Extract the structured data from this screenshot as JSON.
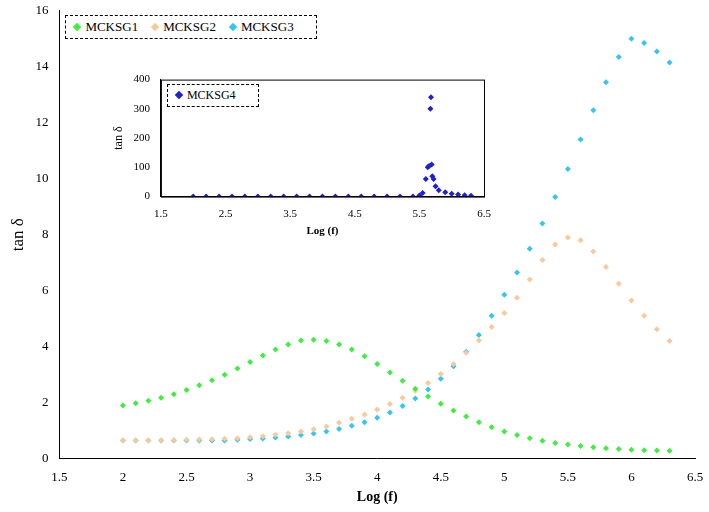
{
  "chart_data": [
    {
      "type": "scatter",
      "x_label": "Log (f)",
      "y_label": "tan δ",
      "x": [
        2.0,
        2.1,
        2.2,
        2.3,
        2.4,
        2.5,
        2.6,
        2.7,
        2.8,
        2.9,
        3.0,
        3.1,
        3.2,
        3.3,
        3.4,
        3.5,
        3.6,
        3.7,
        3.8,
        3.9,
        4.0,
        4.1,
        4.2,
        4.3,
        4.4,
        4.5,
        4.6,
        4.7,
        4.8,
        4.9,
        5.0,
        5.1,
        5.2,
        5.3,
        5.4,
        5.5,
        5.6,
        5.7,
        5.8,
        5.9,
        6.0,
        6.1,
        6.2,
        6.3
      ],
      "series": [
        {
          "name": "MCKSG1",
          "color": "#3cf03c",
          "marker": "diamond",
          "line_style": "none",
          "values": [
            1.9,
            1.98,
            2.07,
            2.17,
            2.3,
            2.45,
            2.62,
            2.8,
            3.0,
            3.22,
            3.45,
            3.68,
            3.9,
            4.08,
            4.22,
            4.25,
            4.2,
            4.08,
            3.9,
            3.66,
            3.38,
            3.08,
            2.78,
            2.5,
            2.22,
            1.96,
            1.72,
            1.5,
            1.3,
            1.12,
            0.97,
            0.84,
            0.73,
            0.64,
            0.56,
            0.5,
            0.45,
            0.41,
            0.37,
            0.34,
            0.32,
            0.3,
            0.29,
            0.28
          ]
        },
        {
          "name": "MCKSG2",
          "color": "#f9c99a",
          "marker": "diamond",
          "line_style": "none",
          "values": [
            0.65,
            0.65,
            0.65,
            0.66,
            0.66,
            0.67,
            0.68,
            0.69,
            0.71,
            0.73,
            0.76,
            0.8,
            0.85,
            0.91,
            0.97,
            1.05,
            1.15,
            1.28,
            1.42,
            1.58,
            1.75,
            1.95,
            2.17,
            2.42,
            2.7,
            3.02,
            3.38,
            3.78,
            4.22,
            4.7,
            5.2,
            5.75,
            6.4,
            7.1,
            7.65,
            7.9,
            7.8,
            7.4,
            6.85,
            6.25,
            5.65,
            5.1,
            4.62,
            4.2
          ]
        },
        {
          "name": "MCKSG3",
          "color": "#33c6f0",
          "marker": "diamond",
          "line_style": "none",
          "values": [
            0.65,
            0.65,
            0.65,
            0.65,
            0.65,
            0.65,
            0.65,
            0.65,
            0.65,
            0.67,
            0.7,
            0.72,
            0.75,
            0.79,
            0.84,
            0.9,
            0.97,
            1.06,
            1.17,
            1.3,
            1.46,
            1.65,
            1.88,
            2.15,
            2.47,
            2.85,
            3.3,
            3.82,
            4.42,
            5.1,
            5.85,
            6.65,
            7.5,
            8.4,
            9.35,
            10.35,
            11.4,
            12.45,
            13.45,
            14.35,
            15.0,
            14.85,
            14.55,
            14.15
          ]
        }
      ],
      "xlim": [
        1.5,
        6.5
      ],
      "xticks": [
        1.5,
        2,
        2.5,
        3,
        3.5,
        4,
        4.5,
        5,
        5.5,
        6,
        6.5
      ],
      "ylim": [
        0,
        16
      ],
      "yticks": [
        0,
        2,
        4,
        6,
        8,
        10,
        12,
        14,
        16
      ],
      "grid": false,
      "legend": "upper left"
    },
    {
      "type": "scatter",
      "x_label": "Log (f)",
      "y_label": "tan δ",
      "x": [
        2.0,
        2.2,
        2.4,
        2.6,
        2.8,
        3.0,
        3.2,
        3.4,
        3.6,
        3.8,
        4.0,
        4.2,
        4.4,
        4.6,
        4.8,
        5.0,
        5.2,
        5.4,
        5.5,
        5.55,
        5.6,
        5.63,
        5.65,
        5.67,
        5.68,
        5.69,
        5.7,
        5.72,
        5.75,
        5.8,
        5.9,
        6.0,
        6.1,
        6.2,
        6.3
      ],
      "series": [
        {
          "name": "MCKSG4",
          "color": "#1f1fd6",
          "marker": "diamond",
          "line_style": "none",
          "values": [
            0.5,
            0.5,
            0.5,
            0.5,
            0.5,
            0.5,
            0.5,
            0.5,
            0.5,
            0.5,
            0.5,
            0.5,
            0.5,
            0.5,
            0.5,
            0.5,
            0.5,
            0.5,
            4,
            12,
            60,
            100,
            105,
            300,
            340,
            110,
            70,
            60,
            35,
            22,
            15,
            10,
            7,
            5,
            3
          ]
        }
      ],
      "xlim": [
        1.5,
        6.5
      ],
      "xticks": [
        1.5,
        2.5,
        3.5,
        4.5,
        5.5,
        6.5
      ],
      "ylim": [
        0,
        400
      ],
      "yticks": [
        0,
        100,
        200,
        300,
        400
      ],
      "grid": false,
      "legend": "upper left"
    }
  ]
}
